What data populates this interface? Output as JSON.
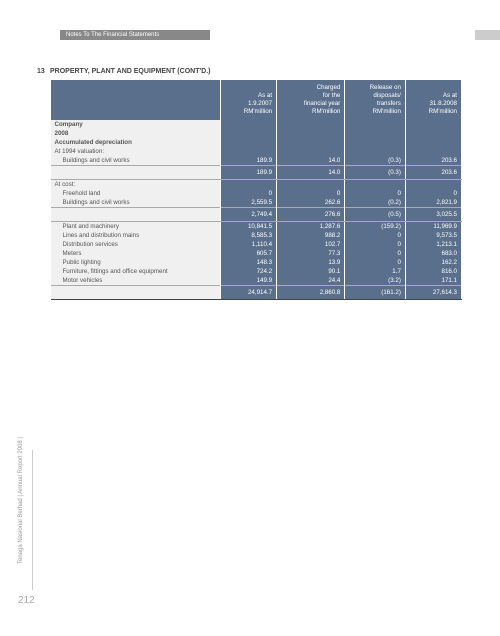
{
  "header": {
    "text": "Notes To The Financial Statements"
  },
  "section": {
    "number": "13",
    "title": "PROPERTY, PLANT AND EQUIPMENT (CONT'D.)"
  },
  "table": {
    "columns": [
      {
        "l1": "",
        "l2": "As at",
        "l3": "1.9.2007",
        "l4": "RM'million"
      },
      {
        "l1": "Charged",
        "l2": "for the",
        "l3": "financial year",
        "l4": "RM'million"
      },
      {
        "l1": "Release on",
        "l2": "disposals/",
        "l3": "transfers",
        "l4": "RM'million"
      },
      {
        "l1": "",
        "l2": "As at",
        "l3": "31.8.2008",
        "l4": "RM'million"
      }
    ],
    "groupA": {
      "h1": "Company",
      "h2": "2008",
      "h3": "Accumulated depreciation"
    },
    "valuation_label": "At 1994 valuation:",
    "r_bcw1": {
      "label": "Buildings and civil works",
      "v": [
        "189.9",
        "14.0",
        "(0.3)",
        "203.6"
      ]
    },
    "sub1": {
      "v": [
        "189.9",
        "14.0",
        "(0.3)",
        "203.6"
      ]
    },
    "cost_label": "At cost:",
    "r_fh": {
      "label": "Freehold land",
      "v": [
        "0",
        "0",
        "0",
        "0"
      ]
    },
    "r_bcw2": {
      "label": "Buildings and civil works",
      "v": [
        "2,559.5",
        "262.6",
        "(0.2)",
        "2,821.9"
      ]
    },
    "sub2": {
      "v": [
        "2,749.4",
        "276.6",
        "(0.5)",
        "3,025.5"
      ]
    },
    "r_pm": {
      "label": "Plant and machinery",
      "v": [
        "10,841.5",
        "1,287.6",
        "(159.2)",
        "11,969.9"
      ]
    },
    "r_ldm": {
      "label": "Lines and distribution mains",
      "v": [
        "8,585.3",
        "988.2",
        "0",
        "9,573.5"
      ]
    },
    "r_ds": {
      "label": "Distribution services",
      "v": [
        "1,110.4",
        "102.7",
        "0",
        "1,213.1"
      ]
    },
    "r_met": {
      "label": "Meters",
      "v": [
        "605.7",
        "77.3",
        "0",
        "683.0"
      ]
    },
    "r_pl": {
      "label": "Public lighting",
      "v": [
        "148.3",
        "13.9",
        "0",
        "162.2"
      ]
    },
    "r_ffo": {
      "label": "Furniture, fittings and office equipment",
      "v": [
        "724.2",
        "90.1",
        "1.7",
        "816.0"
      ]
    },
    "r_mv": {
      "label": "Motor vehicles",
      "v": [
        "149.9",
        "24.4",
        "(3.2)",
        "171.1"
      ]
    },
    "total": {
      "v": [
        "24,914.7",
        "2,860.8",
        "(161.2)",
        "27,614.3"
      ]
    }
  },
  "side": {
    "company": "Tenaga Nasional Berhad",
    "report": "Annual Report 2008"
  },
  "page": "212"
}
